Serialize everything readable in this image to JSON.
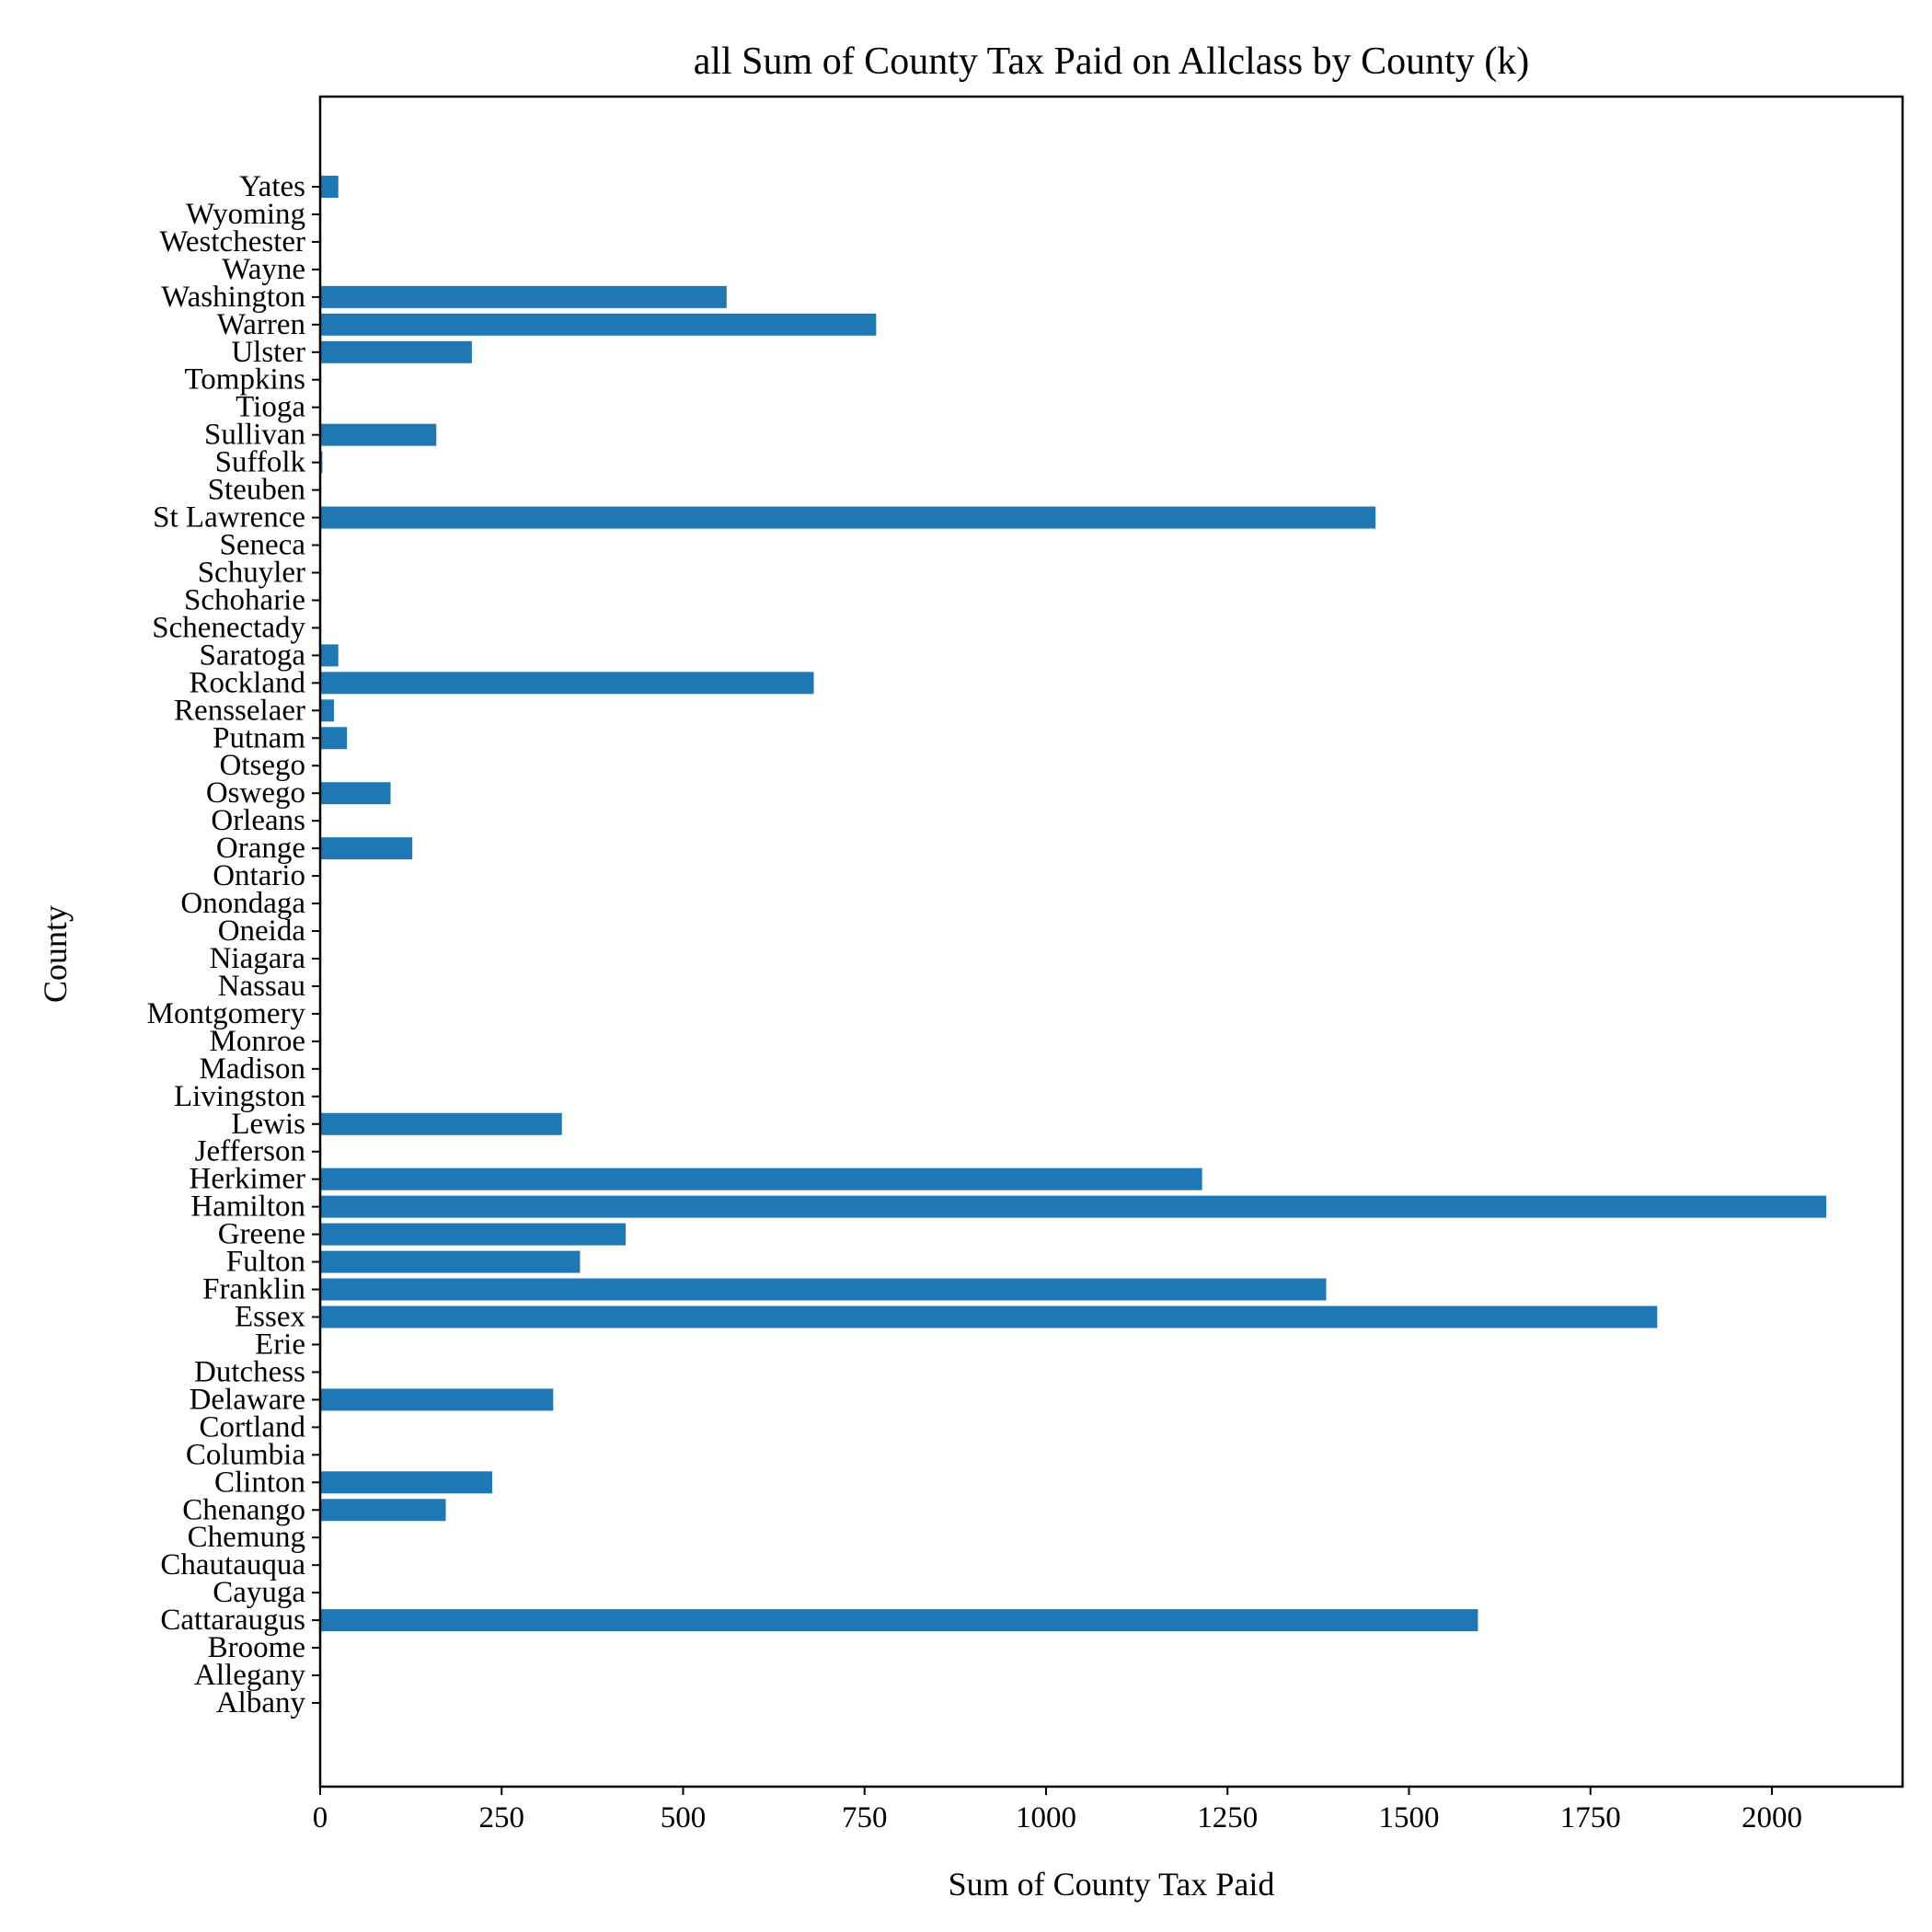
{
  "chart_data": {
    "type": "bar",
    "orientation": "horizontal",
    "title": "all Sum of County Tax Paid on Allclass by County (k)",
    "xlabel": "Sum of County Tax Paid",
    "ylabel": "County",
    "xlim": [
      0,
      2180
    ],
    "xticks": [
      0,
      250,
      500,
      750,
      1000,
      1250,
      1500,
      1750,
      2000
    ],
    "grid": false,
    "bar_color": "#1f77b4",
    "categories": [
      "Albany",
      "Allegany",
      "Broome",
      "Cattaraugus",
      "Cayuga",
      "Chautauqua",
      "Chemung",
      "Chenango",
      "Clinton",
      "Columbia",
      "Cortland",
      "Delaware",
      "Dutchess",
      "Erie",
      "Essex",
      "Franklin",
      "Fulton",
      "Greene",
      "Hamilton",
      "Herkimer",
      "Jefferson",
      "Lewis",
      "Livingston",
      "Madison",
      "Monroe",
      "Montgomery",
      "Nassau",
      "Niagara",
      "Oneida",
      "Onondaga",
      "Ontario",
      "Orange",
      "Orleans",
      "Oswego",
      "Otsego",
      "Putnam",
      "Rensselaer",
      "Rockland",
      "Saratoga",
      "Schenectady",
      "Schoharie",
      "Schuyler",
      "Seneca",
      "St Lawrence",
      "Steuben",
      "Suffolk",
      "Sullivan",
      "Tioga",
      "Tompkins",
      "Ulster",
      "Warren",
      "Washington",
      "Wayne",
      "Westchester",
      "Wyoming",
      "Yates"
    ],
    "values": [
      0,
      0,
      0,
      1595,
      0,
      0,
      0,
      173,
      237,
      0,
      0,
      321,
      0,
      0,
      1842,
      1386,
      358,
      421,
      2075,
      1215,
      0,
      333,
      0,
      0,
      0,
      0,
      0,
      0,
      0,
      0,
      0,
      127,
      0,
      97,
      0,
      37,
      19,
      680,
      25,
      0,
      0,
      0,
      0,
      1454,
      0,
      3,
      160,
      0,
      0,
      209,
      766,
      560,
      0,
      0,
      0,
      25
    ]
  }
}
